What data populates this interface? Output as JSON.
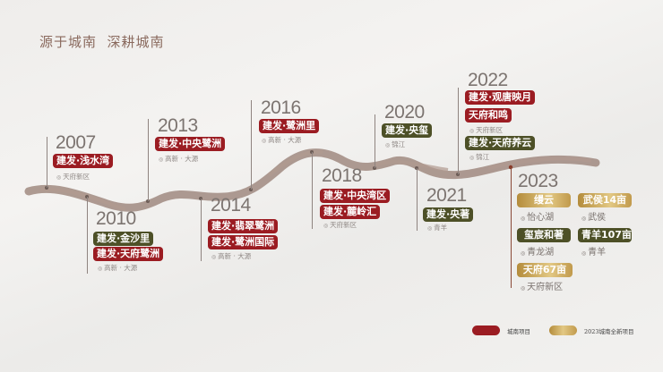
{
  "title": "源于城南  深耕城南",
  "colors": {
    "existing": "#9b1c22",
    "olive": "#4d5027",
    "new_2023": "#c9a658",
    "river": "#a08a80"
  },
  "milestones": {
    "y2007": {
      "year": "2007",
      "tags": [
        "建发·浅水湾"
      ],
      "loc": "天府新区"
    },
    "y2010": {
      "year": "2010",
      "tags": [
        "建发·金沙里",
        "建发·天府鹭洲"
      ],
      "loc": "高新 · 大源"
    },
    "y2013": {
      "year": "2013",
      "tags": [
        "建发·中央鹭洲"
      ],
      "loc": "高新 · 大源"
    },
    "y2014": {
      "year": "2014",
      "tags": [
        "建发·翡翠鹭洲",
        "建发·鹭洲国际"
      ],
      "loc": "高新 · 大源"
    },
    "y2016": {
      "year": "2016",
      "tags": [
        "建发·鹭洲里"
      ],
      "loc": "高新 · 大源"
    },
    "y2018": {
      "year": "2018",
      "tags": [
        "建发·中央湾区",
        "建发·麓岭汇"
      ],
      "loc": "天府新区"
    },
    "y2020": {
      "year": "2020",
      "tags": [
        "建发·央玺"
      ],
      "loc": "锦江"
    },
    "y2021": {
      "year": "2021",
      "tags": [
        "建发·央著"
      ],
      "loc": "青羊"
    },
    "y2022": {
      "year": "2022",
      "tags": [
        "建发·观唐映月",
        "天府和鸣",
        "建发·天府养云"
      ],
      "locs": [
        "天府新区",
        "锦江"
      ]
    },
    "y2023": {
      "year": "2023",
      "projects": [
        {
          "name": "缦云",
          "loc": "怡心湖"
        },
        {
          "name": "武侯14亩",
          "loc": "武侯"
        },
        {
          "name": "玺宸和著",
          "loc": "青龙湖"
        },
        {
          "name": "青羊107亩",
          "loc": "青羊"
        },
        {
          "name": "天府67亩",
          "loc": "天府新区"
        }
      ]
    }
  },
  "legend": [
    {
      "label": "城南项目"
    },
    {
      "label": "2023城南全新项目"
    }
  ]
}
